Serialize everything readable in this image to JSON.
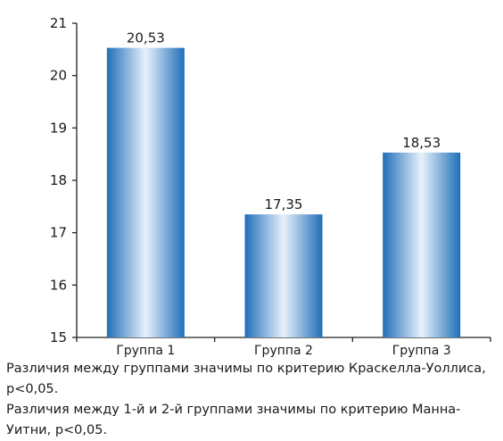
{
  "chart_data": {
    "type": "bar",
    "categories": [
      "Группа 1",
      "Группа 2",
      "Группа 3"
    ],
    "values": [
      20.53,
      17.35,
      18.53
    ],
    "data_labels": [
      "20,53",
      "17,35",
      "18,53"
    ],
    "yticks": [
      "15",
      "16",
      "17",
      "18",
      "19",
      "20",
      "21"
    ],
    "ylim": [
      15,
      21
    ],
    "title": "",
    "xlabel": "",
    "ylabel": "",
    "grid": false,
    "bar_colors": {
      "edge": "#1f6fb9",
      "mid": "#e8f1fb"
    }
  },
  "notes": {
    "line1": "Различия между группами значимы по критерию Краскелла-Уоллиса, p<0,05.",
    "line2": "Различия между 1-й и 2-й группами значимы по критерию Манна-Уитни, p<0,05."
  }
}
